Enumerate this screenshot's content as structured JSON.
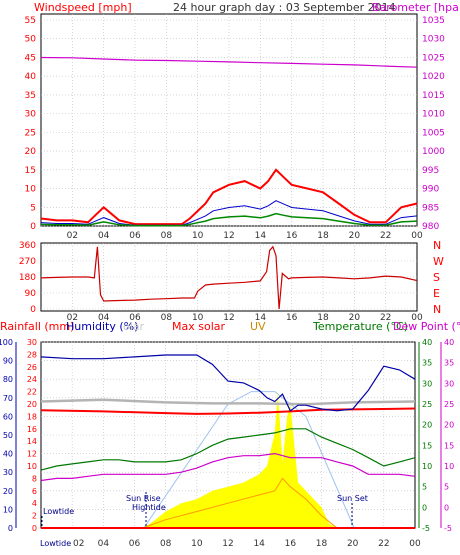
{
  "title": "24 hour graph day : 03 September 2014",
  "colors": {
    "wind": "#ff0000",
    "avg": "#0000cc",
    "gust": "#008800",
    "baro": "#cc00cc",
    "dir": "#cc0000",
    "rain": "#ff0000",
    "hum": "#0000aa",
    "solar": "#ff0000",
    "uv": "#cc8800",
    "temp": "#007700",
    "dew": "#cc00cc",
    "grey": "#b4b4b4",
    "pink": "#ff66ff",
    "fill": "#ffff00",
    "fillLine": "#ff9900",
    "grid": "#bdbdbd",
    "sun": "#9ec3ee"
  },
  "panel1": {
    "left_label": "Windspeed [mph]",
    "right_label": "Barometer [hpa]",
    "left_ticks": [
      "0",
      "5",
      "10",
      "15",
      "20",
      "25",
      "30",
      "35",
      "40",
      "45",
      "50",
      "55"
    ],
    "right_ticks": [
      "980",
      "985",
      "990",
      "995",
      "1000",
      "1005",
      "1010",
      "1015",
      "1020",
      "1025",
      "1030",
      "1035"
    ],
    "x_ticks": [
      "02",
      "04",
      "06",
      "08",
      "10",
      "12",
      "14",
      "16",
      "18",
      "20",
      "22",
      "00"
    ]
  },
  "panel2": {
    "left_ticks": [
      "0",
      "90",
      "180",
      "270",
      "360"
    ],
    "right_labels": [
      "N",
      "W",
      "S",
      "E",
      "N"
    ],
    "x_ticks": [
      "02",
      "04",
      "06",
      "08",
      "10",
      "12",
      "14",
      "16",
      "18",
      "20",
      "22",
      "00"
    ]
  },
  "panel3": {
    "headers": {
      "rain": "Rainfall (mm)",
      "humidity": "Humidity (%)",
      "solar_faded": "olar",
      "maxsolar": "Max solar",
      "uv": "UV",
      "temp": "Temperature (°C)",
      "dew": "Dew Point (°C)"
    },
    "hum_ticks": [
      "0",
      "10",
      "20",
      "30",
      "40",
      "50",
      "60",
      "70",
      "80",
      "90",
      "100"
    ],
    "rain_ticks": [
      "0",
      "2",
      "4",
      "6",
      "8",
      "10",
      "12",
      "14",
      "16",
      "18",
      "20",
      "22",
      "24",
      "26",
      "28",
      "30"
    ],
    "temp_ticks": [
      "-5",
      "0",
      "5",
      "10",
      "15",
      "20",
      "25",
      "30",
      "35",
      "40"
    ],
    "dew_ticks": [
      "-5",
      "0",
      "5",
      "10",
      "15",
      "20",
      "25",
      "30",
      "35",
      "40"
    ],
    "x_ticks": [
      "02",
      "04",
      "06",
      "08",
      "10",
      "12",
      "14",
      "16",
      "18",
      "20",
      "22",
      "00"
    ],
    "annotations": {
      "lowtide_top": "Lowtide",
      "sunrise": "Sun Rise",
      "hightide": "Hightide",
      "sunset": "Sun Set",
      "lowtide_bottom": "Lowtide"
    }
  },
  "chart_data": [
    {
      "type": "line",
      "title": "24 hour graph day : 03 September 2014",
      "x_unit": "hour",
      "ylim_left": [
        0,
        55
      ],
      "ylim_right": [
        980,
        1035
      ],
      "series": [
        {
          "name": "Windspeed [mph]",
          "axis": "left",
          "x": [
            0,
            1,
            2,
            3,
            3.5,
            4,
            5,
            6,
            7,
            8,
            9,
            9.5,
            10,
            10.5,
            11,
            12,
            13,
            14,
            14.5,
            15,
            15.5,
            16,
            17,
            18,
            19,
            20,
            21,
            22,
            22.5,
            23,
            24
          ],
          "y": [
            2,
            1.5,
            1.5,
            1,
            3,
            5,
            1.5,
            0.5,
            0.5,
            0.5,
            0.5,
            2,
            4,
            6,
            9,
            11,
            12,
            10,
            12,
            15,
            13,
            11,
            10,
            9,
            6,
            3,
            1,
            1,
            3,
            5,
            6
          ]
        },
        {
          "name": "Barometer [hpa]",
          "axis": "right",
          "x": [
            0,
            2,
            4,
            6,
            8,
            10,
            12,
            14,
            16,
            18,
            20,
            22,
            24
          ],
          "y": [
            1025,
            1024.9,
            1024.6,
            1024.3,
            1024.2,
            1024,
            1023.8,
            1023.6,
            1023.4,
            1023.2,
            1023,
            1022.7,
            1022.4
          ]
        }
      ]
    },
    {
      "type": "line",
      "x_unit": "hour",
      "ylim": [
        0,
        360
      ],
      "series": [
        {
          "name": "Wind direction",
          "x": [
            0,
            1,
            2,
            3,
            3.4,
            3.6,
            3.8,
            4,
            5,
            6,
            7,
            8,
            9,
            9.8,
            10,
            10.5,
            11,
            12,
            13,
            14,
            14.4,
            14.6,
            14.8,
            15,
            15.2,
            15.4,
            15.8,
            16,
            17,
            18,
            19,
            20,
            21,
            22,
            23,
            24
          ],
          "y": [
            175,
            178,
            180,
            180,
            175,
            350,
            80,
            45,
            48,
            50,
            55,
            58,
            62,
            62,
            100,
            135,
            140,
            145,
            150,
            158,
            210,
            330,
            350,
            300,
            0,
            200,
            170,
            175,
            178,
            180,
            175,
            170,
            175,
            185,
            180,
            160
          ]
        }
      ]
    },
    {
      "type": "line",
      "x_unit": "hour",
      "ylim_humidity": [
        0,
        100
      ],
      "ylim_rain": [
        0,
        30
      ],
      "ylim_temp": [
        -5,
        40
      ],
      "ylim_dew": [
        -5,
        40
      ],
      "series": [
        {
          "name": "Humidity (%)",
          "axis": "humidity",
          "x": [
            0,
            2,
            4,
            6,
            8,
            10,
            11,
            12,
            13,
            14,
            14.5,
            15,
            15.5,
            16,
            16.5,
            17,
            18,
            19,
            20,
            21,
            22,
            23,
            24
          ],
          "y": [
            92,
            91,
            91,
            92,
            93,
            93,
            88,
            79,
            78,
            74,
            70,
            68,
            72,
            63,
            66,
            66,
            64,
            63,
            64,
            74,
            87,
            85,
            80
          ]
        },
        {
          "name": "Rainfall (mm)",
          "axis": "rain",
          "x": [
            0,
            24
          ],
          "y": [
            0,
            0
          ]
        },
        {
          "name": "Max solar",
          "axis": "temp",
          "x": [
            0,
            4,
            8,
            10,
            12,
            14,
            16,
            18,
            20,
            22,
            24
          ],
          "y": [
            23.5,
            23.2,
            22.8,
            22.6,
            22.7,
            22.9,
            23.2,
            23.6,
            23.7,
            23.8,
            23.9
          ]
        },
        {
          "name": "Temperature (°C)",
          "axis": "temp",
          "x": [
            0,
            1,
            2,
            3,
            4,
            5,
            6,
            7,
            8,
            9,
            10,
            11,
            12,
            13,
            14,
            15,
            16,
            17,
            18,
            19,
            20,
            21,
            22,
            23,
            24
          ],
          "y": [
            9,
            10,
            10.5,
            11,
            11.5,
            11.5,
            11,
            11,
            11,
            11.5,
            13,
            15,
            16.5,
            17,
            17.5,
            18,
            19,
            19,
            17,
            15.5,
            14,
            12,
            10,
            11,
            12
          ]
        },
        {
          "name": "Dew Point (°C)",
          "axis": "dew",
          "x": [
            0,
            1,
            2,
            3,
            4,
            5,
            6,
            7,
            8,
            9,
            10,
            11,
            12,
            13,
            14,
            15,
            16,
            17,
            18,
            19,
            20,
            21,
            22,
            23,
            24
          ],
          "y": [
            6.5,
            7,
            7,
            7.5,
            8,
            8,
            8,
            8,
            8,
            8.5,
            9.5,
            11,
            12,
            12.5,
            12.5,
            13,
            12,
            12,
            12,
            11,
            10,
            8,
            8,
            8,
            7.5
          ]
        },
        {
          "name": "Solar",
          "axis": "temp",
          "x": [
            0,
            6.4,
            7,
            8,
            9,
            10,
            11,
            12,
            13,
            14,
            14.5,
            15,
            15.2,
            15.5,
            15.8,
            16,
            16.5,
            17,
            18,
            18.5,
            19,
            24
          ],
          "y": [
            -5,
            -5,
            -4,
            -1,
            1,
            2,
            4,
            5,
            6,
            8,
            10,
            18,
            28,
            11,
            22,
            25,
            6,
            4,
            0,
            -4,
            -5,
            -5
          ]
        },
        {
          "name": "UV",
          "axis": "temp",
          "x": [
            0,
            6.5,
            8,
            10,
            12,
            14,
            15,
            15.5,
            16,
            17,
            18,
            19,
            24
          ],
          "y": [
            -5,
            -5,
            -3,
            -1,
            1,
            3,
            4,
            7,
            5,
            2,
            -2,
            -5,
            -5
          ]
        },
        {
          "name": "Sun path",
          "axis": "temp",
          "x": [
            6.6,
            12,
            13.5,
            15,
            16,
            17,
            20.1
          ],
          "y": [
            -5,
            25,
            28,
            28,
            25,
            22,
            -5
          ]
        }
      ]
    }
  ]
}
